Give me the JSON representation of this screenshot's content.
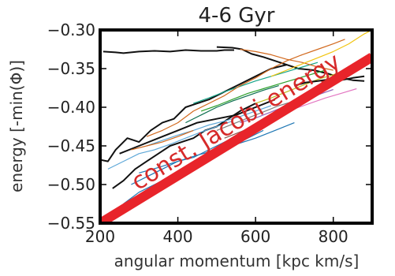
{
  "chart_data": {
    "type": "line",
    "title": "4-6 Gyr",
    "xlabel": "angular momentum [kpc km/s]",
    "ylabel": "energy [-min(Φ)]",
    "xlim": [
      200,
      900
    ],
    "ylim": [
      -0.55,
      -0.3
    ],
    "xticks": [
      200,
      400,
      600,
      800
    ],
    "xtick_labels": [
      "200",
      "400",
      "600",
      "800"
    ],
    "yticks": [
      -0.55,
      -0.5,
      -0.45,
      -0.4,
      -0.35,
      -0.3
    ],
    "ytick_labels": [
      "−0.55",
      "−0.50",
      "−0.45",
      "−0.40",
      "−0.35",
      "−0.30"
    ],
    "grid": false,
    "legend": false,
    "annotation": {
      "text": "const. Jacobi energy",
      "color": "#e8242a",
      "line": {
        "x": [
          200,
          900
        ],
        "y": [
          -0.55,
          -0.335
        ]
      }
    },
    "series": [
      {
        "color": "#111111",
        "values": [
          [
            208,
            -0.328
          ],
          [
            240,
            -0.329
          ],
          [
            260,
            -0.33
          ],
          [
            300,
            -0.328
          ],
          [
            340,
            -0.327
          ],
          [
            380,
            -0.328
          ],
          [
            420,
            -0.326
          ],
          [
            460,
            -0.327
          ],
          [
            500,
            -0.327
          ],
          [
            520,
            -0.326
          ],
          [
            545,
            -0.326
          ]
        ]
      },
      {
        "color": "#111111",
        "values": [
          [
            500,
            -0.322
          ],
          [
            540,
            -0.323
          ],
          [
            565,
            -0.325
          ],
          [
            590,
            -0.331
          ],
          [
            620,
            -0.335
          ],
          [
            650,
            -0.34
          ],
          [
            680,
            -0.345
          ],
          [
            710,
            -0.35
          ],
          [
            750,
            -0.352
          ],
          [
            790,
            -0.357
          ],
          [
            820,
            -0.362
          ],
          [
            850,
            -0.365
          ],
          [
            880,
            -0.366
          ]
        ]
      },
      {
        "color": "#111111",
        "values": [
          [
            200,
            -0.468
          ],
          [
            220,
            -0.47
          ],
          [
            240,
            -0.455
          ],
          [
            270,
            -0.44
          ],
          [
            300,
            -0.445
          ],
          [
            330,
            -0.43
          ],
          [
            360,
            -0.42
          ],
          [
            390,
            -0.415
          ],
          [
            420,
            -0.4
          ],
          [
            450,
            -0.395
          ],
          [
            480,
            -0.39
          ],
          [
            520,
            -0.38
          ],
          [
            560,
            -0.37
          ],
          [
            600,
            -0.36
          ],
          [
            640,
            -0.35
          ],
          [
            680,
            -0.345
          ]
        ]
      },
      {
        "color": "#111111",
        "values": [
          [
            232,
            -0.505
          ],
          [
            260,
            -0.495
          ],
          [
            290,
            -0.48
          ],
          [
            320,
            -0.47
          ],
          [
            350,
            -0.46
          ],
          [
            380,
            -0.45
          ],
          [
            410,
            -0.445
          ],
          [
            440,
            -0.44
          ],
          [
            470,
            -0.43
          ],
          [
            500,
            -0.425
          ],
          [
            530,
            -0.415
          ],
          [
            560,
            -0.405
          ],
          [
            600,
            -0.395
          ]
        ]
      },
      {
        "color": "#111111",
        "values": [
          [
            250,
            -0.46
          ],
          [
            300,
            -0.45
          ],
          [
            350,
            -0.44
          ],
          [
            400,
            -0.43
          ],
          [
            450,
            -0.42
          ],
          [
            500,
            -0.415
          ],
          [
            550,
            -0.41
          ],
          [
            600,
            -0.4
          ],
          [
            650,
            -0.39
          ]
        ]
      },
      {
        "color": "#1f77b4",
        "values": [
          [
            260,
            -0.525
          ],
          [
            300,
            -0.51
          ],
          [
            340,
            -0.5
          ],
          [
            380,
            -0.49
          ],
          [
            420,
            -0.48
          ],
          [
            460,
            -0.47
          ],
          [
            500,
            -0.46
          ],
          [
            540,
            -0.45
          ],
          [
            580,
            -0.44
          ],
          [
            620,
            -0.43
          ]
        ]
      },
      {
        "color": "#1f77b4",
        "values": [
          [
            280,
            -0.5
          ],
          [
            320,
            -0.49
          ],
          [
            360,
            -0.48
          ],
          [
            400,
            -0.47
          ],
          [
            440,
            -0.465
          ],
          [
            480,
            -0.455
          ],
          [
            520,
            -0.445
          ],
          [
            560,
            -0.435
          ],
          [
            600,
            -0.425
          ],
          [
            640,
            -0.415
          ]
        ]
      },
      {
        "color": "#1f77b4",
        "values": [
          [
            300,
            -0.485
          ],
          [
            350,
            -0.478
          ],
          [
            400,
            -0.47
          ],
          [
            450,
            -0.462
          ],
          [
            500,
            -0.455
          ],
          [
            550,
            -0.448
          ],
          [
            600,
            -0.44
          ],
          [
            650,
            -0.43
          ],
          [
            700,
            -0.42
          ]
        ]
      },
      {
        "color": "#5fa8d8",
        "values": [
          [
            220,
            -0.48
          ],
          [
            260,
            -0.47
          ],
          [
            300,
            -0.46
          ],
          [
            340,
            -0.455
          ],
          [
            380,
            -0.448
          ],
          [
            420,
            -0.44
          ],
          [
            460,
            -0.432
          ],
          [
            500,
            -0.425
          ],
          [
            540,
            -0.418
          ]
        ]
      },
      {
        "color": "#5fa8d8",
        "values": [
          [
            320,
            -0.45
          ],
          [
            360,
            -0.443
          ],
          [
            400,
            -0.436
          ],
          [
            440,
            -0.43
          ],
          [
            480,
            -0.423
          ],
          [
            520,
            -0.418
          ],
          [
            560,
            -0.412
          ],
          [
            600,
            -0.405
          ],
          [
            640,
            -0.398
          ]
        ]
      },
      {
        "color": "#2ca02c",
        "values": [
          [
            460,
            -0.405
          ],
          [
            500,
            -0.398
          ],
          [
            540,
            -0.39
          ],
          [
            580,
            -0.382
          ],
          [
            620,
            -0.376
          ],
          [
            660,
            -0.37
          ],
          [
            700,
            -0.364
          ],
          [
            740,
            -0.358
          ],
          [
            780,
            -0.352
          ]
        ]
      },
      {
        "color": "#17a589",
        "values": [
          [
            440,
            -0.395
          ],
          [
            480,
            -0.388
          ],
          [
            520,
            -0.38
          ],
          [
            560,
            -0.373
          ],
          [
            600,
            -0.366
          ],
          [
            640,
            -0.36
          ],
          [
            680,
            -0.354
          ],
          [
            720,
            -0.348
          ],
          [
            760,
            -0.342
          ]
        ]
      },
      {
        "color": "#0b6e4f",
        "values": [
          [
            420,
            -0.42
          ],
          [
            460,
            -0.41
          ],
          [
            500,
            -0.4
          ],
          [
            540,
            -0.392
          ],
          [
            580,
            -0.385
          ],
          [
            620,
            -0.378
          ],
          [
            660,
            -0.372
          ]
        ]
      },
      {
        "color": "#d2691e",
        "values": [
          [
            320,
            -0.438
          ],
          [
            360,
            -0.43
          ],
          [
            400,
            -0.42
          ],
          [
            440,
            -0.405
          ],
          [
            480,
            -0.395
          ],
          [
            520,
            -0.385
          ],
          [
            560,
            -0.372
          ],
          [
            600,
            -0.362
          ],
          [
            640,
            -0.35
          ],
          [
            680,
            -0.34
          ],
          [
            720,
            -0.332
          ],
          [
            760,
            -0.325
          ],
          [
            800,
            -0.318
          ],
          [
            830,
            -0.312
          ]
        ]
      },
      {
        "color": "#d2691e",
        "values": [
          [
            560,
            -0.325
          ],
          [
            600,
            -0.328
          ],
          [
            640,
            -0.332
          ],
          [
            680,
            -0.338
          ],
          [
            720,
            -0.342
          ],
          [
            760,
            -0.348
          ],
          [
            800,
            -0.352
          ]
        ]
      },
      {
        "color": "#d2691e",
        "values": [
          [
            280,
            -0.455
          ],
          [
            320,
            -0.45
          ],
          [
            360,
            -0.445
          ],
          [
            400,
            -0.438
          ],
          [
            440,
            -0.43
          ]
        ]
      },
      {
        "color": "#f1c40f",
        "values": [
          [
            640,
            -0.36
          ],
          [
            680,
            -0.352
          ],
          [
            720,
            -0.344
          ],
          [
            760,
            -0.336
          ],
          [
            800,
            -0.328
          ],
          [
            840,
            -0.318
          ],
          [
            880,
            -0.305
          ],
          [
            900,
            -0.3
          ]
        ]
      },
      {
        "color": "#e377c2",
        "values": [
          [
            620,
            -0.418
          ],
          [
            660,
            -0.41
          ],
          [
            700,
            -0.402
          ],
          [
            740,
            -0.395
          ],
          [
            780,
            -0.388
          ],
          [
            820,
            -0.382
          ],
          [
            860,
            -0.376
          ]
        ]
      },
      {
        "color": "#9467bd",
        "values": [
          [
            560,
            -0.42
          ],
          [
            600,
            -0.414
          ],
          [
            640,
            -0.406
          ],
          [
            680,
            -0.398
          ],
          [
            720,
            -0.39
          ],
          [
            760,
            -0.384
          ],
          [
            800,
            -0.377
          ]
        ]
      },
      {
        "color": "#bcbd22",
        "values": [
          [
            600,
            -0.395
          ],
          [
            640,
            -0.388
          ],
          [
            680,
            -0.38
          ],
          [
            720,
            -0.372
          ],
          [
            760,
            -0.364
          ],
          [
            800,
            -0.358
          ],
          [
            840,
            -0.35
          ],
          [
            880,
            -0.344
          ]
        ]
      },
      {
        "color": "#7f7f7f",
        "values": [
          [
            500,
            -0.43
          ],
          [
            540,
            -0.422
          ],
          [
            580,
            -0.414
          ],
          [
            620,
            -0.406
          ],
          [
            660,
            -0.398
          ],
          [
            700,
            -0.392
          ],
          [
            740,
            -0.386
          ]
        ]
      },
      {
        "color": "#8c564b",
        "values": [
          [
            520,
            -0.44
          ],
          [
            560,
            -0.432
          ],
          [
            600,
            -0.424
          ],
          [
            640,
            -0.416
          ],
          [
            680,
            -0.408
          ]
        ]
      },
      {
        "color": "#111111",
        "values": [
          [
            700,
            -0.372
          ],
          [
            730,
            -0.368
          ],
          [
            760,
            -0.366
          ],
          [
            790,
            -0.364
          ],
          [
            820,
            -0.365
          ],
          [
            850,
            -0.362
          ],
          [
            880,
            -0.36
          ]
        ]
      }
    ]
  }
}
